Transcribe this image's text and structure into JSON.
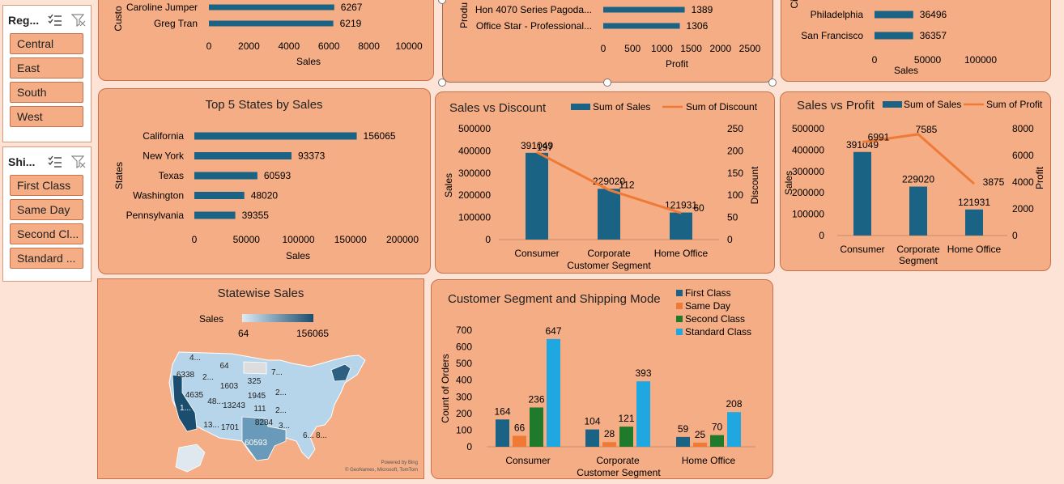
{
  "slicers": {
    "region": {
      "title": "Reg...",
      "items": [
        "Central",
        "East",
        "South",
        "West"
      ]
    },
    "ship": {
      "title": "Shi...",
      "items": [
        "First Class",
        "Same Day",
        "Second Cl...",
        "Standard ..."
      ]
    }
  },
  "top_customers": {
    "ylabel": "Custo",
    "rows": [
      {
        "name": "Caroline Jumper",
        "value": 6267
      },
      {
        "name": "Greg Tran",
        "value": 6219
      }
    ],
    "ticks": [
      "0",
      "2000",
      "4000",
      "6000",
      "8000",
      "10000"
    ],
    "xlabel": "Sales"
  },
  "top_products": {
    "ylabel": "Produ",
    "rows": [
      {
        "name": "Hon 4070 Series Pagoda...",
        "value": 1389
      },
      {
        "name": "Office Star - Professional...",
        "value": 1306
      }
    ],
    "ticks": [
      "0",
      "500",
      "1000",
      "1500",
      "2000",
      "2500"
    ],
    "xlabel": "Profit"
  },
  "top_cities": {
    "ylabel": "Ci",
    "rows": [
      {
        "name": "Philadelphia",
        "value": 36496
      },
      {
        "name": "San Francisco",
        "value": 36357
      }
    ],
    "ticks": [
      "0",
      "50000",
      "100000"
    ],
    "xlabel": "Sales"
  },
  "chart_data": [
    {
      "type": "bar",
      "title": "Top 5 States by Sales",
      "categories": [
        "California",
        "New York",
        "Texas",
        "Washington",
        "Pennsylvania"
      ],
      "values": [
        156065,
        93373,
        60593,
        48020,
        39355
      ],
      "xlabel": "Sales",
      "ylabel": "States",
      "xlim": [
        0,
        200000
      ],
      "ticks": [
        "0",
        "50000",
        "100000",
        "150000",
        "200000"
      ]
    },
    {
      "type": "bar",
      "title": "Sales vs Discount",
      "categories": [
        "Consumer",
        "Corporate",
        "Home Office"
      ],
      "series": [
        {
          "name": "Sum of Sales",
          "values": [
            391049,
            229020,
            121931
          ]
        },
        {
          "name": "Sum of Discount",
          "values": [
            197,
            112,
            60
          ]
        }
      ],
      "xlabel": "Customer Segment",
      "ylabel": "Sales",
      "y2label": "Discount",
      "ylim": [
        0,
        500000
      ],
      "y2lim": [
        0,
        250
      ],
      "ticks": [
        "0",
        "100000",
        "200000",
        "300000",
        "400000",
        "500000"
      ],
      "ticks2": [
        "0",
        "50",
        "100",
        "150",
        "200",
        "250"
      ]
    },
    {
      "type": "bar",
      "title": "Sales vs Profit",
      "categories": [
        "Consumer",
        "Corporate\nSegment",
        "Home Office"
      ],
      "series": [
        {
          "name": "Sum of Sales",
          "values": [
            391049,
            229020,
            121931
          ]
        },
        {
          "name": "Sum of Profit",
          "values": [
            6991,
            7585,
            3875
          ]
        }
      ],
      "ylabel": "Sales",
      "y2label": "Profit",
      "ylim": [
        0,
        500000
      ],
      "y2lim": [
        0,
        8000
      ],
      "ticks": [
        "0",
        "100000",
        "200000",
        "300000",
        "400000",
        "500000"
      ],
      "ticks2": [
        "0",
        "2000",
        "4000",
        "6000",
        "8000"
      ]
    },
    {
      "type": "bar",
      "title": "Customer Segment and Shipping Mode",
      "categories": [
        "Consumer",
        "Corporate",
        "Home Office"
      ],
      "series": [
        {
          "name": "First Class",
          "values": [
            164,
            104,
            59
          ]
        },
        {
          "name": "Same Day",
          "values": [
            66,
            28,
            25
          ]
        },
        {
          "name": "Second Class",
          "values": [
            236,
            121,
            70
          ]
        },
        {
          "name": "Standard Class",
          "values": [
            647,
            393,
            208
          ]
        }
      ],
      "xlabel": "Customer Segment",
      "ylabel": "Count of Orders",
      "ylim": [
        0,
        700
      ],
      "ticks": [
        "0",
        "100",
        "200",
        "300",
        "400",
        "500",
        "600",
        "700"
      ]
    }
  ],
  "map": {
    "title": "Statewise Sales",
    "legend_label": "Sales",
    "legend_min": "64",
    "legend_max": "156065",
    "labels": [
      "4...",
      "6338",
      "2...",
      "64",
      "325",
      "7...",
      "1603",
      "4635",
      "1945",
      "2...",
      "48...",
      "13243",
      "111",
      "2...",
      "1...",
      "13...",
      "1701",
      "8284",
      "3...",
      "6...",
      "8...",
      "60593"
    ],
    "credit1": "Powered by Bing",
    "credit2": "© GeoNames, Microsoft, TomTom"
  },
  "colors": {
    "bar": "#1b6384",
    "line": "#ee7a36",
    "same_day": "#ee7a36",
    "second": "#1f7a2c",
    "standard": "#1ea7e0",
    "panel": "#f4ad84"
  }
}
